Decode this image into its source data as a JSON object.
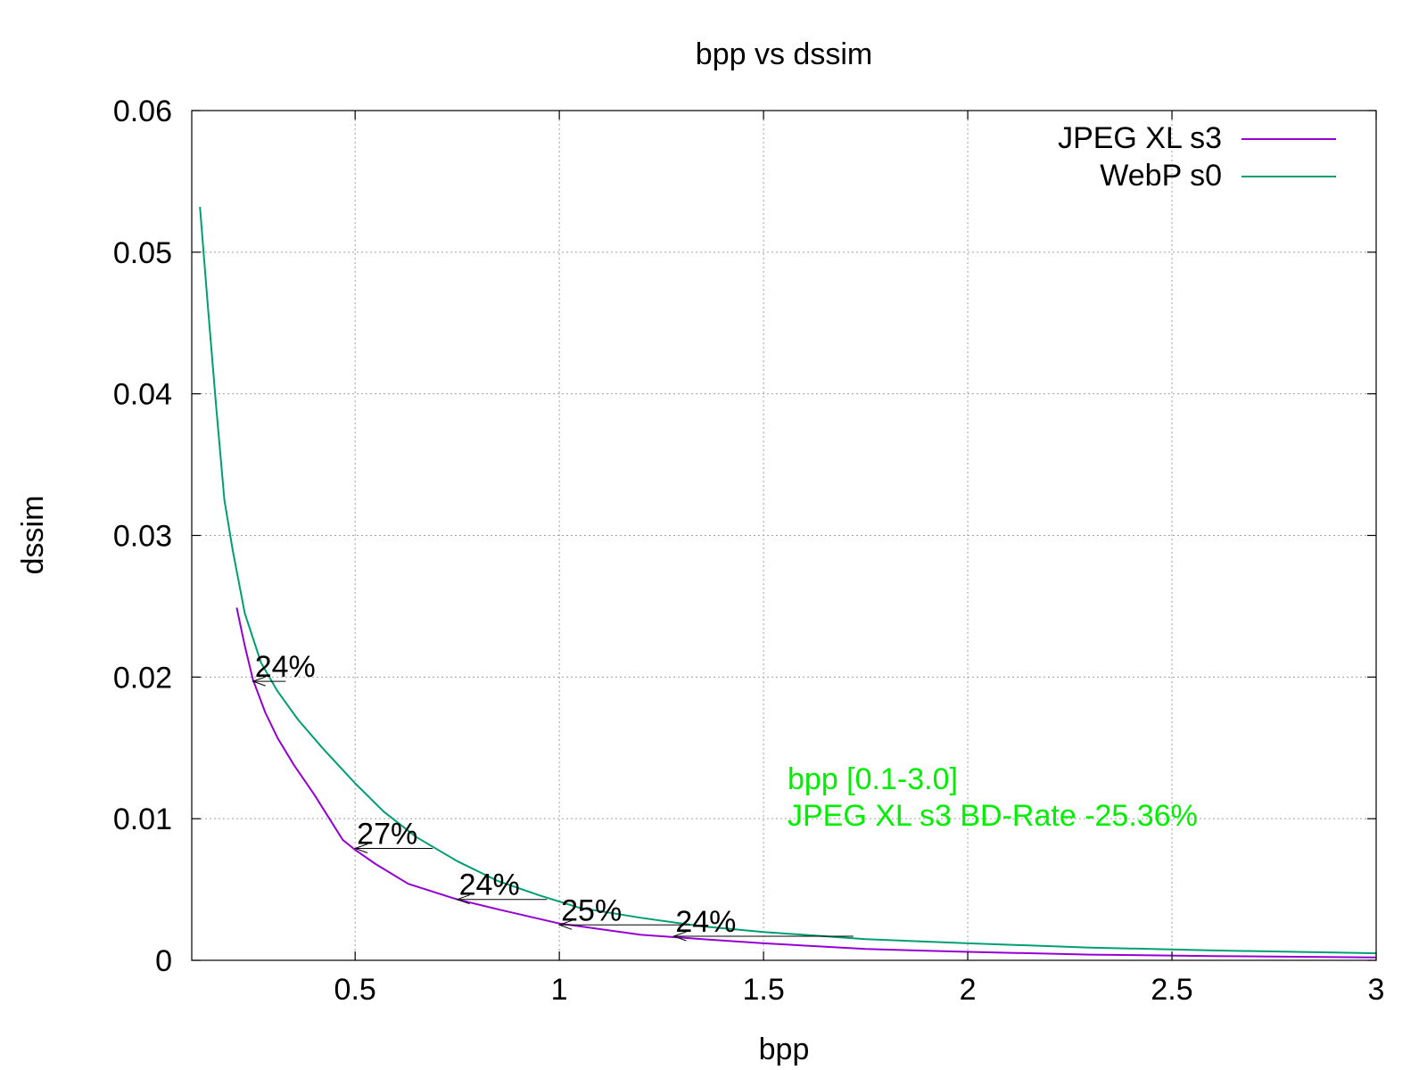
{
  "chart_data": {
    "type": "line",
    "title": "bpp vs dssim",
    "xlabel": "bpp",
    "ylabel": "dssim",
    "xlim": [
      0.1,
      3.0
    ],
    "ylim": [
      0,
      0.06
    ],
    "x_ticks": [
      0.5,
      1,
      1.5,
      2,
      2.5,
      3
    ],
    "y_ticks": [
      0,
      0.01,
      0.02,
      0.03,
      0.04,
      0.05,
      0.06
    ],
    "x_tick_labels": [
      "0.5",
      "1",
      "1.5",
      "2",
      "2.5",
      "3"
    ],
    "y_tick_labels": [
      "0",
      "0.01",
      "0.02",
      "0.03",
      "0.04",
      "0.05",
      "0.06"
    ],
    "grid": true,
    "legend_position": "top-right",
    "series": [
      {
        "name": "JPEG XL s3",
        "color": "#9400d3",
        "points": [
          [
            0.21,
            0.0249
          ],
          [
            0.23,
            0.0222
          ],
          [
            0.25,
            0.0198
          ],
          [
            0.28,
            0.0175
          ],
          [
            0.31,
            0.0157
          ],
          [
            0.35,
            0.0138
          ],
          [
            0.4,
            0.0117
          ],
          [
            0.47,
            0.0085
          ],
          [
            0.5,
            0.0078
          ],
          [
            0.55,
            0.0068
          ],
          [
            0.63,
            0.0054
          ],
          [
            0.75,
            0.0043
          ],
          [
            0.85,
            0.0036
          ],
          [
            1.0,
            0.0026
          ],
          [
            1.2,
            0.0018
          ],
          [
            1.35,
            0.0015
          ],
          [
            1.5,
            0.0012
          ],
          [
            1.75,
            0.0008
          ],
          [
            2.0,
            0.0006
          ],
          [
            2.3,
            0.0004
          ],
          [
            2.6,
            0.0003
          ],
          [
            3.0,
            0.0002
          ]
        ]
      },
      {
        "name": "WebP s0",
        "color": "#009e73",
        "points": [
          [
            0.12,
            0.0532
          ],
          [
            0.14,
            0.046
          ],
          [
            0.16,
            0.039
          ],
          [
            0.18,
            0.0325
          ],
          [
            0.2,
            0.029
          ],
          [
            0.23,
            0.0245
          ],
          [
            0.27,
            0.021
          ],
          [
            0.31,
            0.019
          ],
          [
            0.36,
            0.017
          ],
          [
            0.42,
            0.015
          ],
          [
            0.5,
            0.0125
          ],
          [
            0.57,
            0.0105
          ],
          [
            0.65,
            0.0087
          ],
          [
            0.75,
            0.007
          ],
          [
            0.85,
            0.0056
          ],
          [
            0.95,
            0.0046
          ],
          [
            1.05,
            0.0037
          ],
          [
            1.2,
            0.003
          ],
          [
            1.35,
            0.0024
          ],
          [
            1.5,
            0.002
          ],
          [
            1.75,
            0.0015
          ],
          [
            2.0,
            0.0012
          ],
          [
            2.3,
            0.0009
          ],
          [
            2.6,
            0.0007
          ],
          [
            3.0,
            0.0005
          ]
        ]
      }
    ],
    "savings_annotations": [
      {
        "label": "24%",
        "from": [
          0.33,
          0.0197
        ],
        "to": [
          0.25,
          0.0197
        ]
      },
      {
        "label": "27%",
        "from": [
          0.69,
          0.0079
        ],
        "to": [
          0.5,
          0.0079
        ]
      },
      {
        "label": "24%",
        "from": [
          0.97,
          0.0043
        ],
        "to": [
          0.75,
          0.0043
        ]
      },
      {
        "label": "25%",
        "from": [
          1.32,
          0.0025
        ],
        "to": [
          1.0,
          0.0025
        ]
      },
      {
        "label": "24%",
        "from": [
          1.72,
          0.0017
        ],
        "to": [
          1.28,
          0.0017
        ]
      }
    ],
    "annotation_lines": [
      "bpp [0.1-3.0]",
      "JPEG XL s3 BD-Rate -25.36%"
    ],
    "annotation_color": "#00ee00"
  }
}
